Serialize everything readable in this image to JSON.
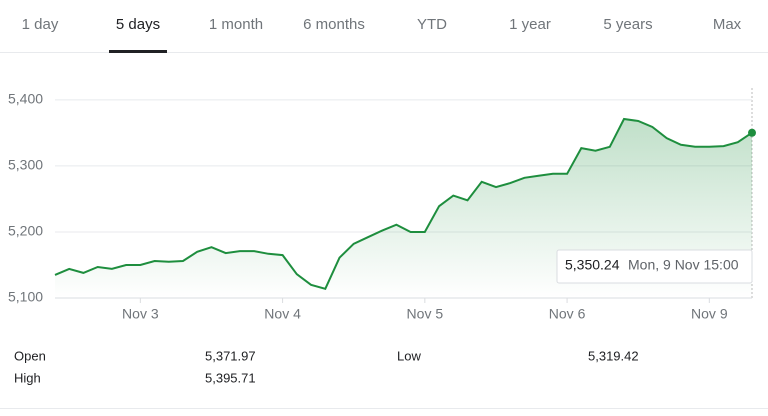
{
  "tabs": [
    "1 day",
    "5 days",
    "1 month",
    "6 months",
    "YTD",
    "1 year",
    "5 years",
    "Max"
  ],
  "active_tab": "5 days",
  "chart_data": {
    "type": "line",
    "color": "#1e8e3e",
    "grid": true,
    "x": [
      0.4,
      0.5,
      0.6,
      0.7,
      0.8,
      0.9,
      1,
      1.1,
      1.2,
      1.3,
      1.4,
      1.5,
      1.6,
      1.7,
      1.8,
      1.9,
      2,
      2.1,
      2.2,
      2.3,
      2.4,
      2.5,
      2.6,
      2.7,
      2.8,
      2.9,
      3,
      3.1,
      3.2,
      3.3,
      3.4,
      3.5,
      3.6,
      3.7,
      3.8,
      3.9,
      4,
      4.1,
      4.2,
      4.3,
      4.4,
      4.5,
      4.6,
      4.7,
      4.8,
      4.9,
      5,
      5.1,
      5.2,
      5.3
    ],
    "values": [
      5135,
      5144,
      5138,
      5147,
      5144,
      5150,
      5150,
      5156,
      5155,
      5156,
      5170,
      5177,
      5168,
      5171,
      5171,
      5167,
      5165,
      5136,
      5120,
      5114,
      5161,
      5182,
      5192,
      5202,
      5211,
      5200,
      5200,
      5239,
      5255,
      5248,
      5276,
      5268,
      5274,
      5282,
      5285,
      5288,
      5288,
      5327,
      5323,
      5329,
      5371,
      5368,
      5359,
      5342,
      5332,
      5329,
      5329,
      5330,
      5336,
      5350.24
    ],
    "xlim": [
      0.4,
      5.3
    ],
    "xticks": [
      {
        "value": 1,
        "label": "Nov 3"
      },
      {
        "value": 2,
        "label": "Nov 4"
      },
      {
        "value": 3,
        "label": "Nov 5"
      },
      {
        "value": 4,
        "label": "Nov 6"
      },
      {
        "value": 5,
        "label": "Nov 9"
      }
    ],
    "ylim": [
      5100,
      5418
    ],
    "yticks": [
      {
        "value": 5100,
        "label": "5,100"
      },
      {
        "value": 5200,
        "label": "5,200"
      },
      {
        "value": 5300,
        "label": "5,300"
      },
      {
        "value": 5400,
        "label": "5,400"
      }
    ]
  },
  "tooltip": {
    "value": "5,350.24",
    "time": "Mon, 9 Nov 15:00"
  },
  "stats": [
    {
      "label": "Open",
      "value": "5,371.97"
    },
    {
      "label": "High",
      "value": "5,395.71"
    },
    {
      "label": "Low",
      "value": "5,319.42"
    }
  ]
}
